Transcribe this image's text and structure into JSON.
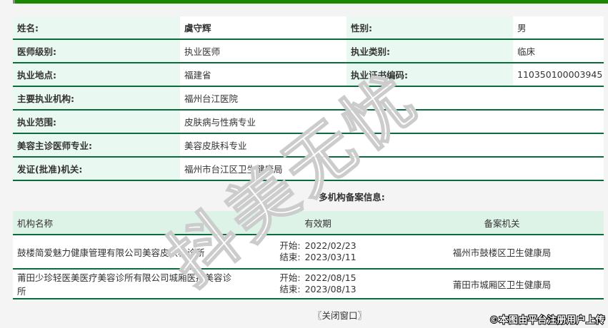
{
  "colors": {
    "accent_green": "#1c8700",
    "separator_green": "#0a6b3d",
    "label_bg": "#e9f8f0",
    "header_bg": "#def3e8",
    "page_bg": "#f4f4f4"
  },
  "profile": {
    "rows2": [
      {
        "l1": "姓名:",
        "v1": "虞守辉",
        "l2": "性别:",
        "v2": "男"
      },
      {
        "l1": "医师级别:",
        "v1": "执业医师",
        "l2": "执业类别:",
        "v2": "临床"
      },
      {
        "l1": "执业地点:",
        "v1": "福建省",
        "l2": "执业证书编码:",
        "v2": "110350100003945"
      }
    ],
    "rows1": [
      {
        "l": "主要执业机构:",
        "v": "福州台江医院"
      },
      {
        "l": "执业范围:",
        "v": "皮肤病与性病专业"
      },
      {
        "l": "美容主诊医师专业:",
        "v": "美容皮肤科专业"
      },
      {
        "l": "发证(批准)机关:",
        "v": "福州市台江区卫生健康局"
      }
    ]
  },
  "registrations": {
    "title": "多机构备案信息:",
    "headers": {
      "name": "机构名称",
      "period": "有效期",
      "authority": "备案机关"
    },
    "start_label": "开始:",
    "end_label": "结束:",
    "rows": [
      {
        "name": "鼓楼简爱魅力健康管理有限公司美容皮肤科诊所",
        "start": "2022/02/23",
        "end": "2023/03/11",
        "authority": "福州市鼓楼区卫生健康局"
      },
      {
        "name": "莆田少珍轻医美医疗美容诊所有限公司城厢医疗美容诊所",
        "start": "2022/08/15",
        "end": "2023/08/13",
        "authority": "莆田市城厢区卫生健康局"
      }
    ]
  },
  "footer": {
    "close": "〖关闭窗口〗",
    "copyright": "©本图由平台注册用户上传"
  },
  "watermark": "抖美无忧"
}
